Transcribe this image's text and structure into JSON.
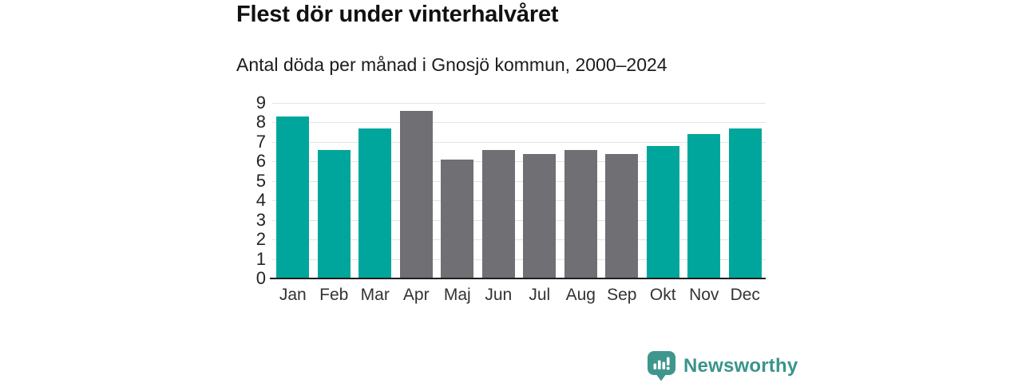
{
  "header": {
    "title": "Flest dör under vinterhalvåret",
    "subtitle": "Antal döda per månad i Gnosjö kommun, 2000–2024"
  },
  "chart_data": {
    "type": "bar",
    "title": "Flest dör under vinterhalvåret",
    "subtitle": "Antal döda per månad i Gnosjö kommun, 2000–2024",
    "categories": [
      "Jan",
      "Feb",
      "Mar",
      "Apr",
      "Maj",
      "Jun",
      "Jul",
      "Aug",
      "Sep",
      "Okt",
      "Nov",
      "Dec"
    ],
    "values": [
      8.3,
      6.6,
      7.7,
      8.6,
      6.1,
      6.6,
      6.4,
      6.6,
      6.4,
      6.8,
      7.4,
      7.7
    ],
    "highlighted": [
      true,
      true,
      true,
      false,
      false,
      false,
      false,
      false,
      false,
      true,
      true,
      true
    ],
    "xlabel": "",
    "ylabel": "",
    "ylim": [
      0,
      9
    ],
    "yticks": [
      0,
      1,
      2,
      3,
      4,
      5,
      6,
      7,
      8,
      9
    ],
    "grid": true,
    "legend": "none",
    "colors": {
      "highlight": "#00a69c",
      "base": "#6f6f74",
      "gridline": "#e3e3e3",
      "axis": "#1f1f1f",
      "tick_text": "#2b2b2b"
    }
  },
  "footer": {
    "brand": "Newsworthy",
    "brand_color": "#3a948b",
    "logo_icon": "bar-chart-speech-bubble",
    "logo_color": "#3e968d"
  }
}
